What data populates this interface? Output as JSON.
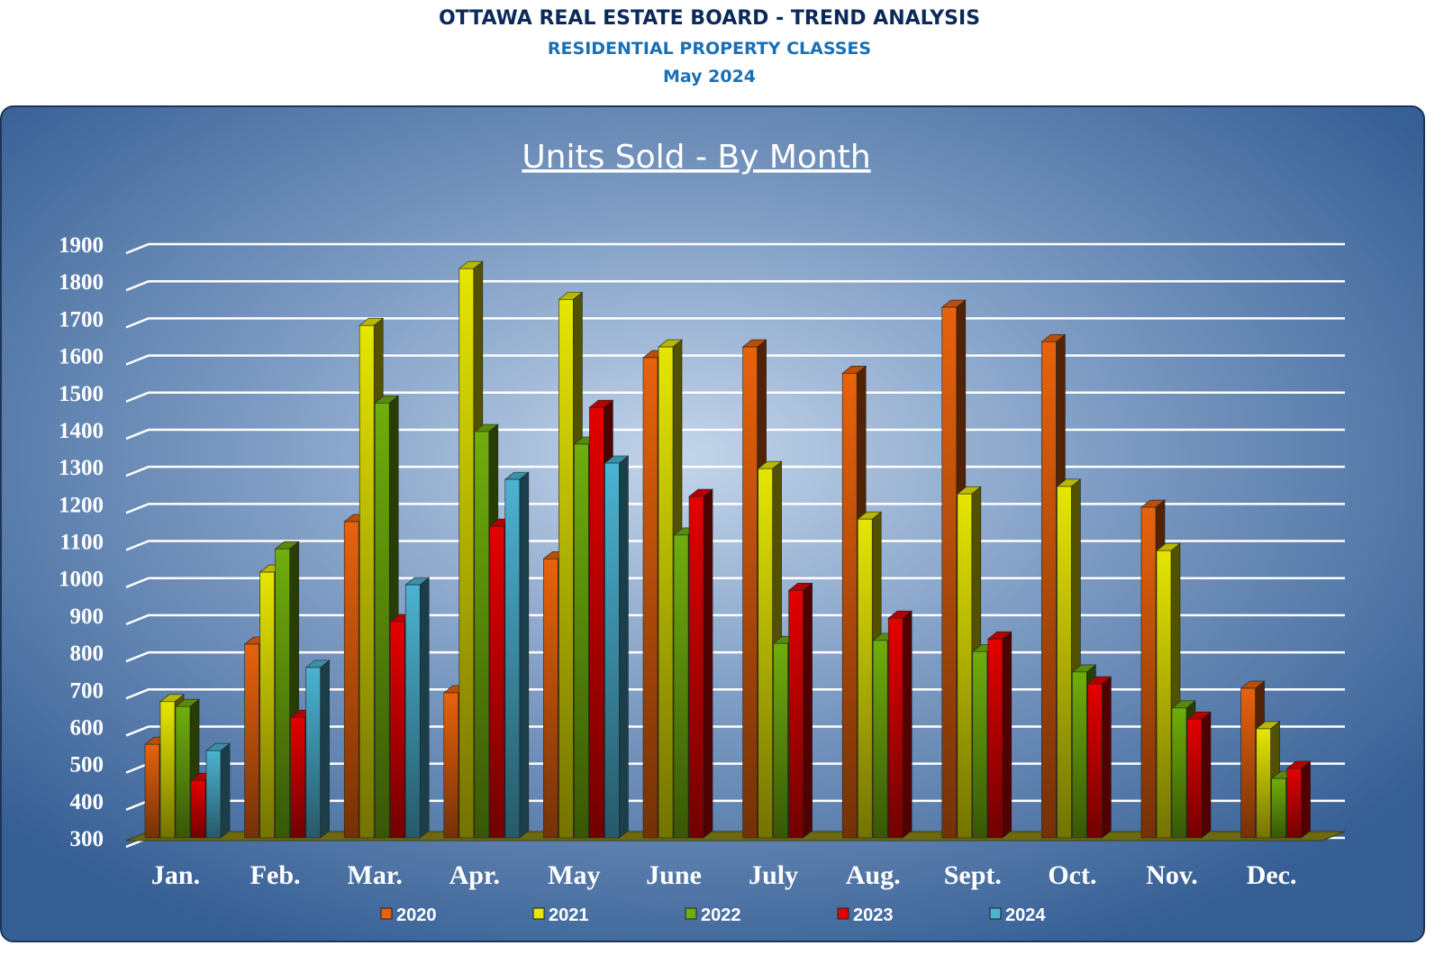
{
  "header": {
    "title": "OTTAWA REAL ESTATE BOARD - TREND ANALYSIS",
    "subtitle": "RESIDENTIAL PROPERTY CLASSES",
    "period": "May 2024"
  },
  "chart_data": {
    "type": "bar",
    "title": "Units Sold - By Month",
    "xlabel": "",
    "ylabel": "",
    "ylim": [
      300,
      1900
    ],
    "yticks": [
      "300",
      "400",
      "500",
      "600",
      "700",
      "800",
      "900",
      "1000",
      "1100",
      "1200",
      "1300",
      "1400",
      "1500",
      "1600",
      "1700",
      "1800",
      "1900"
    ],
    "grid": true,
    "legend_position": "bottom",
    "categories": [
      "Jan.",
      "Feb.",
      "Mar.",
      "Apr.",
      "May",
      "June",
      "July",
      "Aug.",
      "Sept.",
      "Oct.",
      "Nov.",
      "Dec."
    ],
    "series": [
      {
        "name": "2020",
        "color": "#e8620c",
        "values": [
          552,
          822,
          1152,
          691,
          1052,
          1594,
          1623,
          1552,
          1730,
          1637,
          1191,
          703
        ]
      },
      {
        "name": "2021",
        "color": "#e6e600",
        "values": [
          667,
          1016,
          1681,
          1834,
          1751,
          1623,
          1295,
          1159,
          1227,
          1247,
          1074,
          594
        ]
      },
      {
        "name": "2022",
        "color": "#6fae0c",
        "values": [
          654,
          1079,
          1472,
          1395,
          1361,
          1116,
          824,
          832,
          802,
          747,
          650,
          460
        ]
      },
      {
        "name": "2023",
        "color": "#e40000",
        "values": [
          455,
          625,
          883,
          1140,
          1460,
          1220,
          967,
          892,
          836,
          715,
          620,
          487
        ]
      },
      {
        "name": "2024",
        "color": "#4bb3d2",
        "values": [
          535,
          759,
          982,
          1266,
          1310,
          null,
          null,
          null,
          null,
          null,
          null,
          null
        ]
      }
    ]
  }
}
